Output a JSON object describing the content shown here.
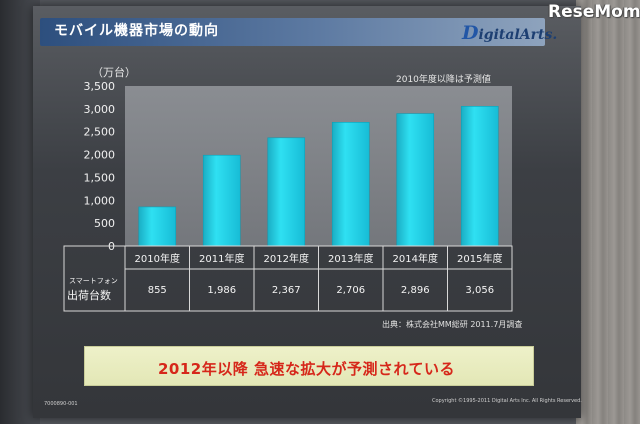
{
  "slide": {
    "title": "モバイル機器市場の動向",
    "logo": "DigitalArts.",
    "watermark": "ReseMom",
    "unit": "（万台）",
    "note": "2010年度以降は予測値",
    "source": "出典：株式会社MM総研 2011.7月調査",
    "banner": "2012年以降  急速な拡大が予測されている",
    "slide_id": "7000890-001",
    "copyright": "Copyright ©1995-2011 Digital Arts Inc. All Rights Reserved."
  },
  "colors": {
    "bar": "#1fd4e8",
    "banner_text": "#d6271a",
    "title_bar": "#2d4f7e"
  },
  "chart_data": {
    "type": "bar",
    "categories": [
      "2010年度",
      "2011年度",
      "2012年度",
      "2013年度",
      "2014年度",
      "2015年度"
    ],
    "series": [
      {
        "values": [
          855,
          1986,
          2367,
          2706,
          2896,
          3056
        ]
      }
    ],
    "data_labels": [
      "855",
      "1,986",
      "2,367",
      "2,706",
      "2,896",
      "3,056"
    ],
    "row_label_small": "スマートフォン",
    "row_label_main": "出荷台数",
    "yticks": [
      "0",
      "500",
      "1,000",
      "1,500",
      "2,000",
      "2,500",
      "3,000",
      "3,500"
    ],
    "ylim": [
      0,
      3500
    ],
    "ylabel": "（万台）",
    "legend": "none",
    "grid": false
  }
}
